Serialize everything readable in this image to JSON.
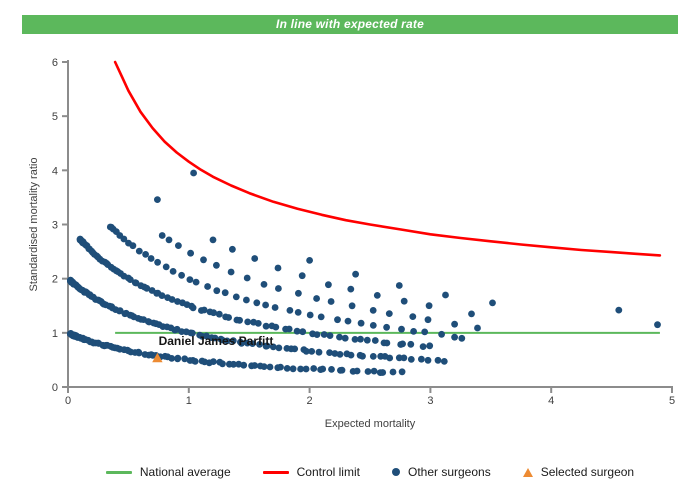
{
  "banner": {
    "text": "In line with expected rate",
    "bg_color": "#5CB85C",
    "text_color": "#FFFFFF"
  },
  "chart_data": {
    "type": "scatter",
    "title": "",
    "xlabel": "Expected mortality",
    "ylabel": "Standardised mortality ratio",
    "xlim": [
      0,
      5
    ],
    "ylim": [
      0,
      6
    ],
    "xticks": [
      "0",
      "1",
      "2",
      "3",
      "4",
      "5"
    ],
    "yticks": [
      "0",
      "1",
      "2",
      "3",
      "4",
      "5",
      "6"
    ],
    "grid": "off",
    "legend_position": "bottom",
    "axis_color": "#8C8C8C",
    "tick_label_color": "#404040",
    "national_average": {
      "y": 1,
      "x_start": 0.39,
      "x_end": 4.9,
      "color": "#5CB85C"
    },
    "control_limit": {
      "color": "#FF0000",
      "formula_note": "y = 1 + 3.16/sqrt(x)",
      "points": [
        [
          0.39,
          6.0
        ],
        [
          0.45,
          5.71
        ],
        [
          0.5,
          5.47
        ],
        [
          0.6,
          5.08
        ],
        [
          0.7,
          4.78
        ],
        [
          0.8,
          4.53
        ],
        [
          0.9,
          4.33
        ],
        [
          1.0,
          4.16
        ],
        [
          1.1,
          4.01
        ],
        [
          1.2,
          3.88
        ],
        [
          1.35,
          3.72
        ],
        [
          1.5,
          3.58
        ],
        [
          1.7,
          3.42
        ],
        [
          1.9,
          3.29
        ],
        [
          2.1,
          3.18
        ],
        [
          2.3,
          3.08
        ],
        [
          2.5,
          3.0
        ],
        [
          2.75,
          2.91
        ],
        [
          3.0,
          2.82
        ],
        [
          3.25,
          2.75
        ],
        [
          3.5,
          2.69
        ],
        [
          3.75,
          2.63
        ],
        [
          4.0,
          2.58
        ],
        [
          4.25,
          2.53
        ],
        [
          4.5,
          2.49
        ],
        [
          4.7,
          2.46
        ],
        [
          4.9,
          2.43
        ]
      ]
    },
    "other_surgeons": {
      "color": "#1F4E79",
      "dot_radius": 3.4,
      "band_formula_note": "bands of constant deaths: smr = deaths / (1 + expected)",
      "bands": [
        {
          "deaths": 1,
          "x_min": 0.02,
          "x_max": 2.75,
          "count": 100,
          "spread": 2.2
        },
        {
          "deaths": 2,
          "x_min": 0.02,
          "x_max": 3.1,
          "count": 110,
          "spread": 2.2
        },
        {
          "deaths": 3,
          "x_min": 0.1,
          "x_max": 3.0,
          "count": 85,
          "spread": 2.0
        },
        {
          "deaths": 4,
          "x_min": 0.35,
          "x_max": 3.1,
          "count": 38,
          "spread": 1.6
        },
        {
          "deaths": 5,
          "x_min": 0.78,
          "x_max": 3.0,
          "count": 18,
          "spread": 1.3
        },
        {
          "deaths": 6,
          "x_min": 1.2,
          "x_max": 3.0,
          "count": 10,
          "spread": 1.1
        },
        {
          "deaths": 7,
          "x_min": 2.0,
          "x_max": 3.5,
          "count": 5,
          "spread": 1.0
        }
      ],
      "extra_points": [
        [
          1.04,
          3.95
        ],
        [
          0.74,
          3.46
        ],
        [
          3.2,
          1.16
        ],
        [
          3.34,
          1.35
        ],
        [
          3.39,
          1.09
        ],
        [
          3.2,
          0.92
        ],
        [
          3.26,
          0.9
        ],
        [
          4.56,
          1.42
        ],
        [
          4.88,
          1.15
        ]
      ],
      "random_seed": 42
    },
    "selected_surgeon": {
      "label": "Daniel James Parfitt",
      "x": 0.74,
      "y": 0.54,
      "color": "#ED8B33",
      "label_x": 0.75,
      "label_y": 0.775
    }
  },
  "legend": {
    "items": [
      {
        "label": "National average",
        "swatch": "line",
        "color": "#5CB85C"
      },
      {
        "label": "Control limit",
        "swatch": "line",
        "color": "#FF0000"
      },
      {
        "label": "Other surgeons",
        "swatch": "dot",
        "color": "#1F4E79"
      },
      {
        "label": "Selected surgeon",
        "swatch": "triangle",
        "color": "#ED8B33"
      }
    ]
  }
}
